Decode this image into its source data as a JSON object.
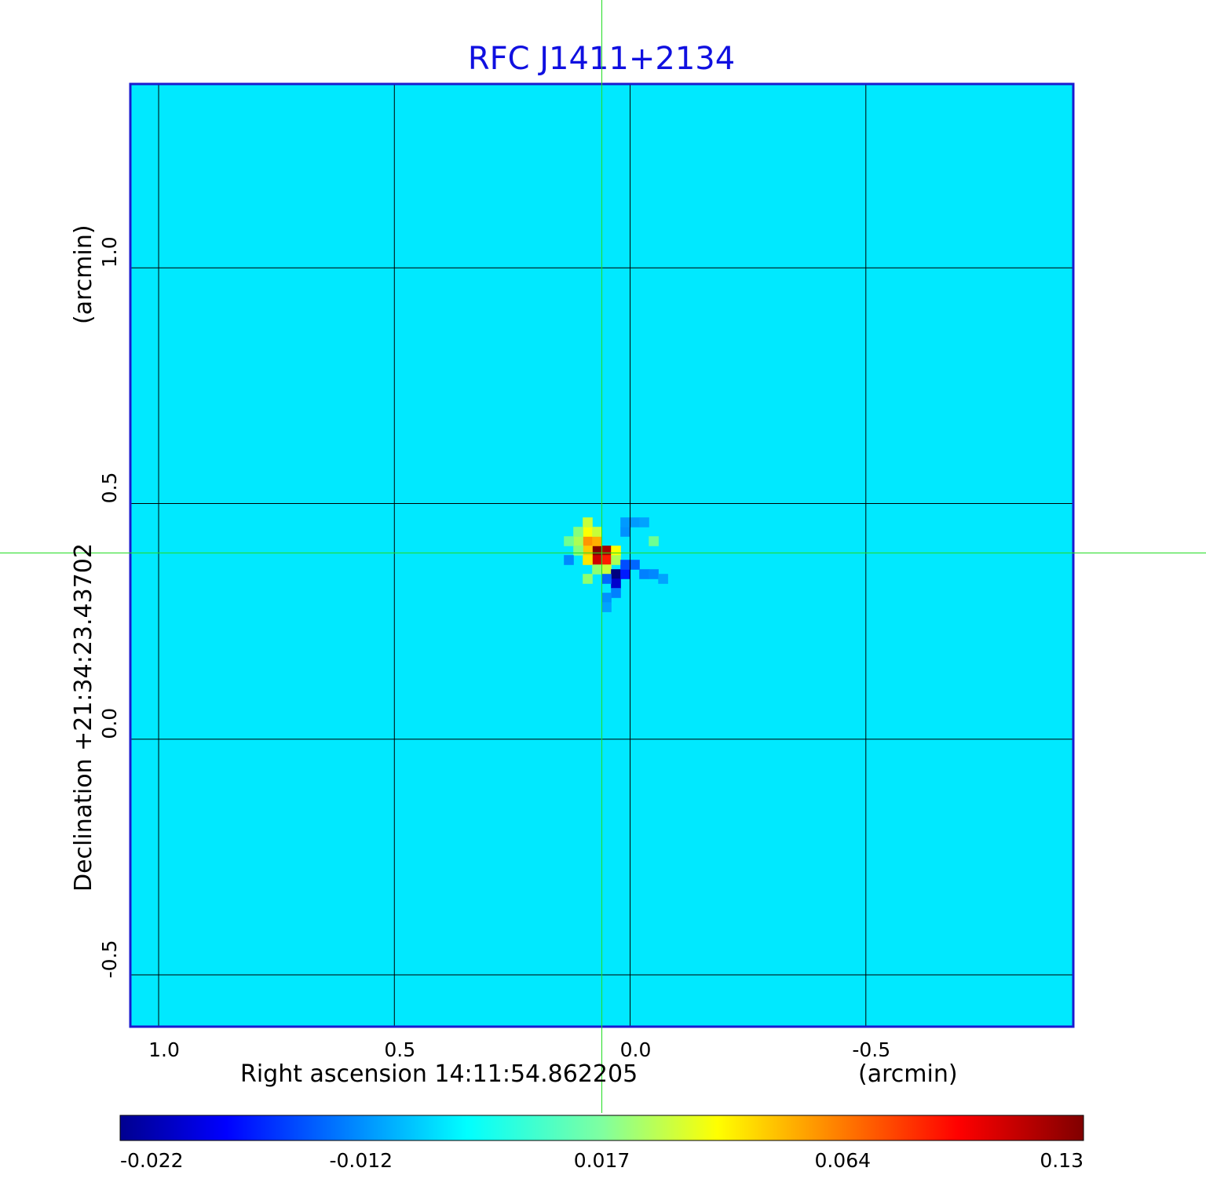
{
  "chart_data": {
    "type": "heatmap",
    "title": "RFC J1411+2134",
    "xlabel": "Right ascension  14:11:54.862205",
    "xunit": "(arcmin)",
    "ylabel": "Declination  +21:34:23.43702",
    "yunit": "(arcmin)",
    "xlim": [
      1.06,
      -0.94
    ],
    "ylim": [
      -0.61,
      1.39
    ],
    "x_ticks": [
      {
        "value": 1.0,
        "label": "1.0"
      },
      {
        "value": 0.5,
        "label": "0.5"
      },
      {
        "value": 0.0,
        "label": "0.0"
      },
      {
        "value": -0.5,
        "label": "-0.5"
      }
    ],
    "y_ticks": [
      {
        "value": 1.0,
        "label": "1.0"
      },
      {
        "value": 0.5,
        "label": "0.5"
      },
      {
        "value": 0.0,
        "label": "0.0"
      },
      {
        "value": -0.5,
        "label": "-0.5"
      }
    ],
    "grid": true,
    "crosshair": {
      "x": 0.06,
      "y": 0.395
    },
    "background_value": 0.0,
    "colorbar": {
      "colormap": "jet",
      "ticks": [
        "-0.022",
        "-0.012",
        "0.017",
        "0.064",
        "0.13"
      ],
      "min": -0.022,
      "max": 0.13
    },
    "features": [
      {
        "x": 0.07,
        "y": 0.4,
        "value": 0.13
      },
      {
        "x": 0.05,
        "y": 0.4,
        "value": 0.12
      },
      {
        "x": 0.07,
        "y": 0.38,
        "value": 0.11
      },
      {
        "x": 0.05,
        "y": 0.38,
        "value": 0.09
      },
      {
        "x": 0.09,
        "y": 0.42,
        "value": 0.06
      },
      {
        "x": 0.07,
        "y": 0.42,
        "value": 0.055
      },
      {
        "x": 0.09,
        "y": 0.4,
        "value": 0.05
      },
      {
        "x": 0.09,
        "y": 0.38,
        "value": 0.045
      },
      {
        "x": 0.09,
        "y": 0.44,
        "value": 0.04
      },
      {
        "x": 0.03,
        "y": 0.4,
        "value": 0.04
      },
      {
        "x": 0.07,
        "y": 0.44,
        "value": 0.03
      },
      {
        "x": 0.09,
        "y": 0.46,
        "value": 0.03
      },
      {
        "x": 0.11,
        "y": 0.42,
        "value": 0.025
      },
      {
        "x": 0.05,
        "y": 0.36,
        "value": 0.03
      },
      {
        "x": 0.03,
        "y": 0.38,
        "value": 0.025
      },
      {
        "x": 0.07,
        "y": 0.36,
        "value": 0.02
      },
      {
        "x": 0.09,
        "y": 0.34,
        "value": 0.02
      },
      {
        "x": 0.11,
        "y": 0.4,
        "value": 0.018
      },
      {
        "x": 0.11,
        "y": 0.44,
        "value": 0.018
      },
      {
        "x": 0.13,
        "y": 0.42,
        "value": 0.015
      },
      {
        "x": -0.05,
        "y": 0.42,
        "value": 0.015
      },
      {
        "x": 0.03,
        "y": 0.35,
        "value": -0.022
      },
      {
        "x": 0.03,
        "y": 0.33,
        "value": -0.019
      },
      {
        "x": 0.01,
        "y": 0.35,
        "value": -0.016
      },
      {
        "x": 0.01,
        "y": 0.37,
        "value": -0.014
      },
      {
        "x": -0.01,
        "y": 0.37,
        "value": -0.013
      },
      {
        "x": -0.03,
        "y": 0.35,
        "value": -0.012
      },
      {
        "x": -0.05,
        "y": 0.35,
        "value": -0.011
      },
      {
        "x": 0.05,
        "y": 0.34,
        "value": -0.013
      },
      {
        "x": 0.03,
        "y": 0.31,
        "value": -0.012
      },
      {
        "x": 0.05,
        "y": 0.3,
        "value": -0.01
      },
      {
        "x": 0.13,
        "y": 0.38,
        "value": -0.011
      },
      {
        "x": 0.01,
        "y": 0.44,
        "value": -0.01
      },
      {
        "x": 0.01,
        "y": 0.46,
        "value": -0.009
      },
      {
        "x": -0.01,
        "y": 0.46,
        "value": -0.009
      },
      {
        "x": -0.03,
        "y": 0.46,
        "value": -0.008
      },
      {
        "x": 0.05,
        "y": 0.28,
        "value": -0.008
      },
      {
        "x": -0.07,
        "y": 0.34,
        "value": -0.008
      }
    ]
  }
}
